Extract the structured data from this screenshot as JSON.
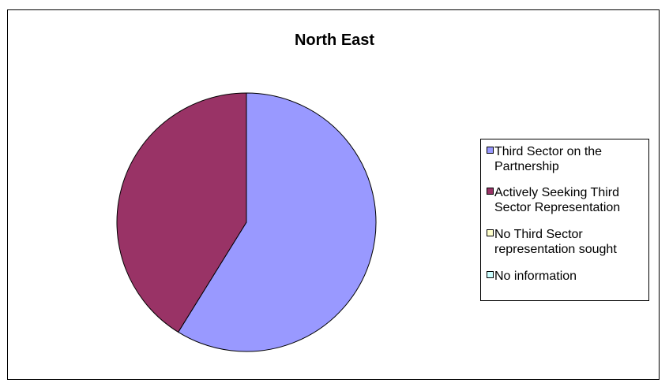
{
  "chart_data": {
    "type": "pie",
    "title": "North East",
    "series": [
      {
        "name": "Third Sector on the Partnership",
        "value": 10,
        "color": "#9999FF"
      },
      {
        "name": "Actively Seeking Third Sector Representation",
        "value": 7,
        "color": "#993366"
      },
      {
        "name": "No Third Sector representation sought",
        "value": 0,
        "color": "#FFFFCC"
      },
      {
        "name": "No information",
        "value": 0,
        "color": "#CCFFFF"
      }
    ],
    "legend": {
      "position": "right",
      "labels": [
        [
          "Third Sector on the",
          "Partnership"
        ],
        [
          "Actively Seeking Third",
          "Sector Representation"
        ],
        [
          "No Third Sector",
          "representation sought"
        ],
        [
          "No information"
        ]
      ]
    }
  }
}
